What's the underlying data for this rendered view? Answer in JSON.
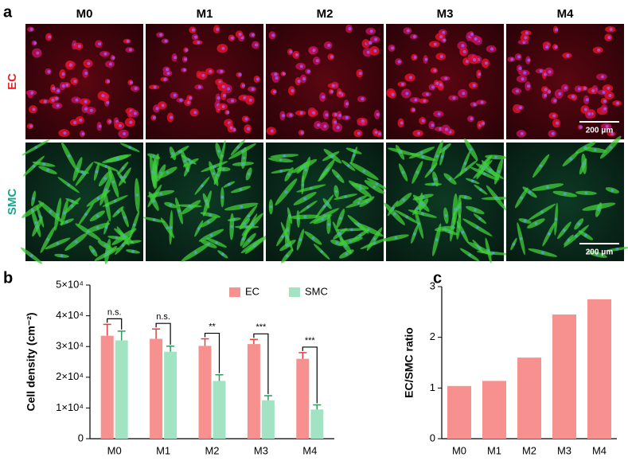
{
  "panel_a": {
    "panel_label": "a",
    "columns": [
      "M0",
      "M1",
      "M2",
      "M3",
      "M4"
    ],
    "rows": [
      {
        "label": "EC",
        "color": "#e8252b"
      },
      {
        "label": "SMC",
        "color": "#1aa58a"
      }
    ],
    "scale_bar": "200 μm"
  },
  "chart_data": [
    {
      "type": "bar",
      "panel_label": "b",
      "y_label": "Cell density (cm⁻²)",
      "categories": [
        "M0",
        "M1",
        "M2",
        "M3",
        "M4"
      ],
      "series": [
        {
          "name": "EC",
          "color": "#f7918f",
          "error_color": "#e0403f",
          "values": [
            33500,
            32500,
            30200,
            30800,
            26000
          ],
          "errors": [
            3700,
            3200,
            2300,
            1500,
            2000
          ]
        },
        {
          "name": "SMC",
          "color": "#a2e3c3",
          "error_color": "#2e9a5e",
          "values": [
            32000,
            28300,
            18800,
            12500,
            9500
          ],
          "errors": [
            3000,
            1800,
            2000,
            1500,
            1500
          ]
        }
      ],
      "annotations": [
        "n.s.",
        "n.s.",
        "**",
        "***",
        "***"
      ],
      "ylim": [
        0,
        50000
      ],
      "yticks": [
        0,
        {
          "value": 10000,
          "label": "1×10⁴"
        },
        {
          "value": 20000,
          "label": "2×10⁴"
        },
        {
          "value": 30000,
          "label": "3×10⁴"
        },
        {
          "value": 40000,
          "label": "4×10⁴"
        },
        {
          "value": 50000,
          "label": "5×10⁴"
        }
      ],
      "legend": "top"
    },
    {
      "type": "bar",
      "panel_label": "c",
      "y_label": "EC/SMC ratio",
      "categories": [
        "M0",
        "M1",
        "M2",
        "M3",
        "M4"
      ],
      "values": [
        1.04,
        1.14,
        1.6,
        2.45,
        2.75
      ],
      "color": "#f7918f",
      "ylim": [
        0,
        3
      ],
      "yticks": [
        0,
        1,
        2,
        3
      ]
    }
  ]
}
